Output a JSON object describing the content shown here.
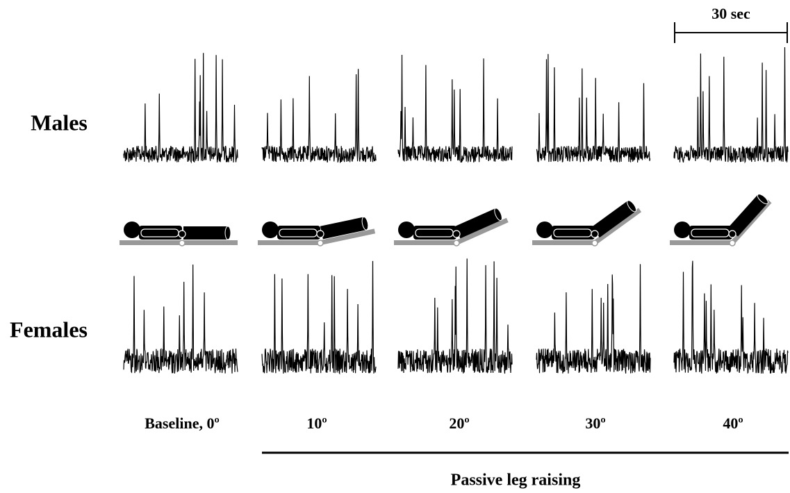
{
  "scale_bar_label": "30 sec",
  "rows": [
    "Males",
    "Females"
  ],
  "conditions": [
    "Baseline, 0º",
    "10º",
    "20º",
    "30º",
    "40º"
  ],
  "group_label": "Passive leg raising"
}
